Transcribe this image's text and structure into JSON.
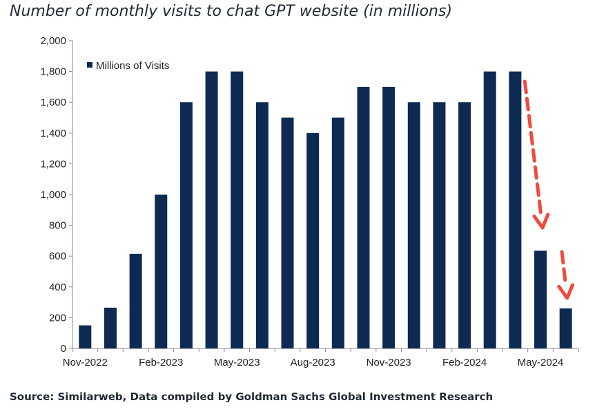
{
  "title": "Number of monthly visits to chat GPT website (in millions)",
  "source": "Source: Similarweb, Data compiled by Goldman Sachs Global Investment Research",
  "colors": {
    "bar": "#0d2b52",
    "arrow": "#f04a3c",
    "axis": "#8a8a8a"
  },
  "chart_data": {
    "type": "bar",
    "title": "Number of monthly visits to chat GPT website (in millions)",
    "xlabel": "",
    "ylabel": "",
    "ylim": [
      0,
      2000
    ],
    "yticks": [
      0,
      200,
      400,
      600,
      800,
      1000,
      1200,
      1400,
      1600,
      1800,
      2000
    ],
    "ytick_labels": [
      "0",
      "200",
      "400",
      "600",
      "800",
      "1,000",
      "1,200",
      "1,400",
      "1,600",
      "1,800",
      "2,000"
    ],
    "categories": [
      "Nov-2022",
      "Dec-2022",
      "Jan-2023",
      "Feb-2023",
      "Mar-2023",
      "Apr-2023",
      "May-2023",
      "Jun-2023",
      "Jul-2023",
      "Aug-2023",
      "Sep-2023",
      "Oct-2023",
      "Nov-2023",
      "Dec-2023",
      "Jan-2024",
      "Feb-2024",
      "Mar-2024",
      "Apr-2024",
      "May-2024",
      "Jun-2024"
    ],
    "xtick_labels": [
      "Nov-2022",
      "",
      "",
      "Feb-2023",
      "",
      "",
      "May-2023",
      "",
      "",
      "Aug-2023",
      "",
      "",
      "Nov-2023",
      "",
      "",
      "Feb-2024",
      "",
      "",
      "May-2024",
      ""
    ],
    "series": [
      {
        "name": "Millions of Visits",
        "values": [
          150,
          265,
          615,
          1000,
          1600,
          1800,
          1800,
          1600,
          1500,
          1400,
          1500,
          1700,
          1700,
          1600,
          1600,
          1600,
          1800,
          1800,
          635,
          260
        ]
      }
    ],
    "legend_position": "top-left",
    "grid": false,
    "annotations": [
      {
        "type": "dashed-arrow",
        "from_category": "Apr-2024",
        "to_category": "May-2024",
        "color": "#f04a3c"
      },
      {
        "type": "dashed-arrow",
        "from_category": "May-2024",
        "to_category": "Jun-2024",
        "color": "#f04a3c"
      }
    ]
  }
}
